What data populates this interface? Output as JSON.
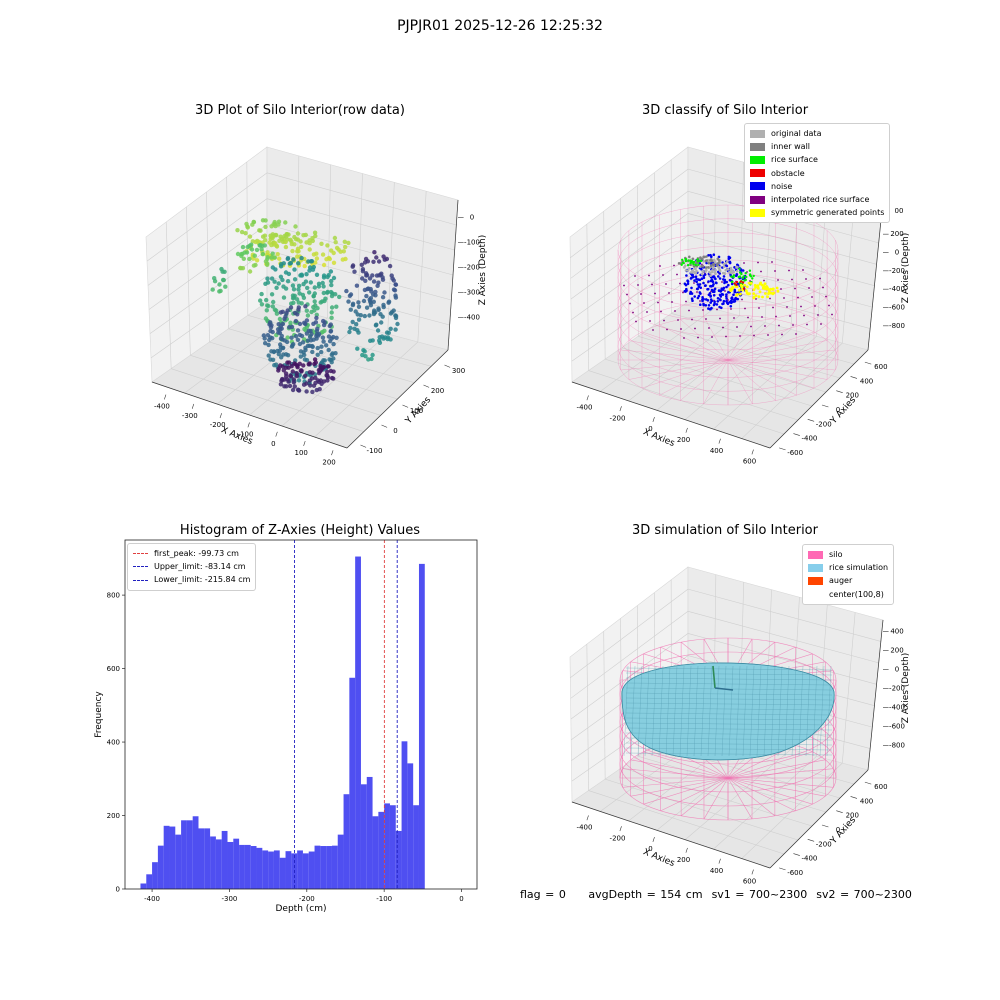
{
  "suptitle": "PJPJR01 2025-12-26 12:25:32",
  "colors": {
    "wireframe_pink": "#f070b0",
    "rice": "#87cedf",
    "hist_bar": "#4040f0",
    "first_peak_line": "#e04040",
    "limit_lines": "#2020c0"
  },
  "panels": {
    "raw": {
      "title": "3D Plot of Silo Interior(row data)",
      "xlabel": "X Axies",
      "ylabel": "Y Axies",
      "zlabel": "Z Axies (Depth)",
      "xticks": [
        "-400",
        "-300",
        "-200",
        "-100",
        "0",
        "100",
        "200"
      ],
      "yticks": [
        "-100",
        "0",
        "100",
        "200",
        "300"
      ],
      "zticks": [
        "0",
        "-100",
        "-200",
        "-300",
        "-400"
      ],
      "colormap": "viridis"
    },
    "classify": {
      "title": "3D classify of Silo Interior",
      "xlabel": "X Axies",
      "ylabel": "Y Axies",
      "zlabel": "Z Axies (Depth)",
      "xticks": [
        "-400",
        "-200",
        "0",
        "200",
        "400",
        "600"
      ],
      "yticks": [
        "-600",
        "-400",
        "-200",
        "0",
        "200",
        "400",
        "600"
      ],
      "zticks": [
        "200",
        "0",
        "-200",
        "-400",
        "-600",
        "-800"
      ],
      "legend": [
        {
          "label": "original data",
          "color": "#b0b0b0"
        },
        {
          "label": "inner wall",
          "color": "#808080"
        },
        {
          "label": "rice surface",
          "color": "#00ee00"
        },
        {
          "label": "obstacle",
          "color": "#ee0000"
        },
        {
          "label": "noise",
          "color": "#0000ee"
        },
        {
          "label": "interpolated rice surface",
          "color": "#800080"
        },
        {
          "label": "symmetric generated points",
          "color": "#ffff00"
        }
      ],
      "ztick_partial": "00"
    },
    "simulation": {
      "title": "3D simulation of Silo Interior",
      "xlabel": "X Axies",
      "ylabel": "Y Axies",
      "zlabel": "Z Axies (Depth)",
      "xticks": [
        "-400",
        "-200",
        "0",
        "200",
        "400",
        "600"
      ],
      "yticks": [
        "-600",
        "-400",
        "-200",
        "0",
        "200",
        "400",
        "600"
      ],
      "zticks": [
        "400",
        "200",
        "0",
        "-200",
        "-400",
        "-600",
        "-800"
      ],
      "legend": [
        {
          "label": "silo",
          "color": "#ff69b4"
        },
        {
          "label": "rice simulation",
          "color": "#87ceeb"
        },
        {
          "label": "auger",
          "color": "#ff4500"
        },
        {
          "label": "center(100,8)",
          "color": "#ffffff"
        }
      ]
    }
  },
  "chart_data": [
    {
      "type": "bar",
      "title": "Histogram of Z-Axies (Height) Values",
      "xlabel": "Depth (cm)",
      "ylabel": "Frequency",
      "xlim": [
        -435,
        20
      ],
      "ylim": [
        0,
        950
      ],
      "xticks": [
        -400,
        -300,
        -200,
        -100,
        0
      ],
      "yticks": [
        0,
        200,
        400,
        600,
        800
      ],
      "bin_width": 7.5,
      "bin_start": -415,
      "values": [
        15,
        40,
        73,
        118,
        172,
        170,
        148,
        187,
        187,
        198,
        165,
        165,
        143,
        135,
        158,
        128,
        137,
        120,
        120,
        117,
        112,
        105,
        102,
        105,
        85,
        103,
        97,
        105,
        97,
        102,
        118,
        117,
        117,
        118,
        148,
        258,
        575,
        905,
        285,
        305,
        198,
        210,
        233,
        228,
        158,
        402,
        342,
        228,
        885
      ],
      "vlines": [
        {
          "label": "first_peak: -99.73 cm",
          "x": -99.73,
          "color": "#e04040"
        },
        {
          "label": "Upper_limit: -83.14 cm",
          "x": -83.14,
          "color": "#2020c0"
        },
        {
          "label": "Lower_limit: -215.84 cm",
          "x": -215.84,
          "color": "#2020c0"
        }
      ]
    }
  ],
  "status": {
    "flag": "flag = 0",
    "avg_depth": "avgDepth = 154 cm",
    "sv1": "sv1 = 700~2300",
    "sv2": "sv2 = 700~2300"
  }
}
